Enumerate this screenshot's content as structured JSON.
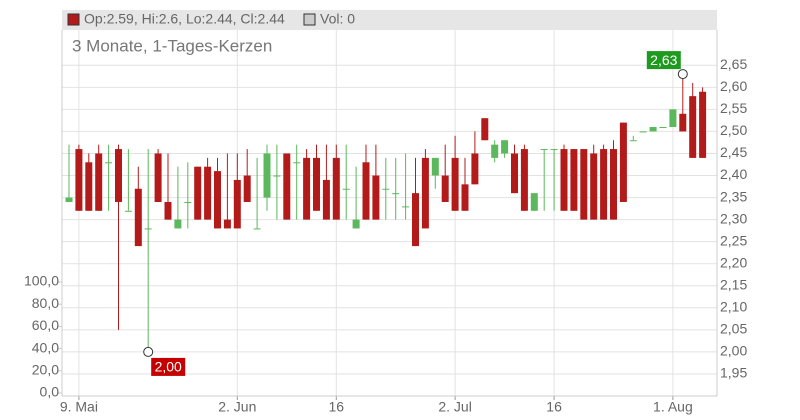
{
  "chart_data": {
    "type": "candlestick",
    "legend_text": "Op:2.59, Hi:2.6, Lo:2.44, Cl:2.44",
    "volume_legend": "Vol: 0",
    "subtitle": "3 Monate, 1-Tages-Kerzen",
    "categories": [
      null,
      "9. Mai",
      null,
      null,
      null,
      null,
      null,
      null,
      null,
      null,
      null,
      null,
      null,
      null,
      null,
      null,
      null,
      "2. Jun",
      null,
      null,
      null,
      null,
      null,
      null,
      null,
      null,
      null,
      "16",
      null,
      null,
      null,
      null,
      null,
      null,
      null,
      null,
      null,
      null,
      null,
      "2. Jul",
      null,
      null,
      null,
      null,
      null,
      null,
      null,
      null,
      null,
      "16",
      null,
      null,
      null,
      null,
      null,
      null,
      null,
      null,
      null,
      null,
      null,
      "1. Aug",
      null,
      null,
      null
    ],
    "series": [
      {
        "name": "Open",
        "values": [
          2.34,
          2.46,
          2.43,
          2.45,
          2.43,
          2.46,
          2.32,
          2.37,
          2.28,
          2.45,
          2.34,
          2.28,
          2.34,
          2.42,
          2.42,
          2.41,
          2.3,
          2.39,
          2.4,
          2.28,
          2.35,
          2.4,
          2.45,
          2.43,
          2.44,
          2.44,
          2.39,
          2.44,
          2.37,
          2.28,
          2.43,
          2.4,
          2.37,
          2.36,
          2.33,
          2.36,
          2.44,
          2.4,
          2.4,
          2.44,
          2.38,
          2.45,
          2.53,
          2.44,
          2.45,
          2.45,
          2.46,
          2.32,
          2.46,
          2.46,
          2.46,
          2.46,
          2.46,
          2.45,
          2.46,
          2.46,
          2.52,
          2.48,
          2.5,
          2.5,
          2.51,
          2.51,
          2.54,
          2.58,
          2.59
        ]
      },
      {
        "name": "High",
        "values": [
          2.47,
          2.47,
          2.45,
          2.47,
          2.47,
          2.47,
          2.46,
          2.42,
          2.46,
          2.46,
          2.45,
          2.42,
          2.43,
          2.42,
          2.44,
          2.44,
          2.45,
          2.45,
          2.46,
          2.44,
          2.47,
          2.47,
          2.45,
          2.47,
          2.46,
          2.47,
          2.47,
          2.47,
          2.47,
          2.42,
          2.47,
          2.47,
          2.44,
          2.44,
          2.45,
          2.44,
          2.46,
          2.44,
          2.47,
          2.49,
          2.44,
          2.5,
          2.53,
          2.48,
          2.48,
          2.47,
          2.47,
          2.36,
          2.46,
          2.46,
          2.47,
          2.46,
          2.46,
          2.47,
          2.47,
          2.48,
          2.52,
          2.49,
          2.5,
          2.51,
          2.51,
          2.55,
          2.63,
          2.61,
          2.6
        ]
      },
      {
        "name": "Low",
        "values": [
          2.34,
          2.32,
          2.32,
          2.32,
          2.32,
          2.05,
          2.32,
          2.24,
          2.0,
          2.34,
          2.3,
          2.28,
          2.28,
          2.3,
          2.3,
          2.28,
          2.28,
          2.28,
          2.34,
          2.28,
          2.32,
          2.3,
          2.3,
          2.3,
          2.3,
          2.32,
          2.3,
          2.3,
          2.3,
          2.28,
          2.3,
          2.3,
          2.3,
          2.3,
          2.3,
          2.24,
          2.28,
          2.37,
          2.34,
          2.32,
          2.32,
          2.38,
          2.48,
          2.43,
          2.44,
          2.36,
          2.32,
          2.32,
          2.32,
          2.32,
          2.32,
          2.32,
          2.3,
          2.3,
          2.3,
          2.3,
          2.34,
          2.48,
          2.5,
          2.5,
          2.51,
          2.51,
          2.5,
          2.44,
          2.44
        ]
      },
      {
        "name": "Close",
        "values": [
          2.35,
          2.32,
          2.32,
          2.32,
          2.43,
          2.34,
          2.32,
          2.24,
          2.28,
          2.34,
          2.3,
          2.3,
          2.34,
          2.3,
          2.3,
          2.28,
          2.28,
          2.28,
          2.34,
          2.28,
          2.45,
          2.4,
          2.3,
          2.43,
          2.3,
          2.32,
          2.3,
          2.3,
          2.37,
          2.3,
          2.3,
          2.3,
          2.37,
          2.36,
          2.33,
          2.24,
          2.28,
          2.44,
          2.34,
          2.32,
          2.32,
          2.38,
          2.48,
          2.47,
          2.48,
          2.36,
          2.32,
          2.36,
          2.46,
          2.46,
          2.32,
          2.32,
          2.3,
          2.3,
          2.3,
          2.3,
          2.34,
          2.48,
          2.5,
          2.51,
          2.51,
          2.55,
          2.5,
          2.44,
          2.44
        ]
      }
    ],
    "up_color": "#5cb85c",
    "down_color": "#b31b1b",
    "annotations": [
      {
        "label": "2,63",
        "value": 2.63,
        "color": "#1e9a1e"
      },
      {
        "label": "2,00",
        "value": 2.0,
        "color": "#c40000"
      }
    ],
    "ylim": [
      1.9,
      2.73
    ],
    "yticks": [
      {
        "value": 1.95,
        "label": "1,95"
      },
      {
        "value": 2.0,
        "label": "2,00"
      },
      {
        "value": 2.05,
        "label": "2,05"
      },
      {
        "value": 2.1,
        "label": "2,10"
      },
      {
        "value": 2.15,
        "label": "2,15"
      },
      {
        "value": 2.2,
        "label": "2,20"
      },
      {
        "value": 2.25,
        "label": "2,25"
      },
      {
        "value": 2.3,
        "label": "2,30"
      },
      {
        "value": 2.35,
        "label": "2,35"
      },
      {
        "value": 2.4,
        "label": "2,40"
      },
      {
        "value": 2.45,
        "label": "2,45"
      },
      {
        "value": 2.5,
        "label": "2,50"
      },
      {
        "value": 2.55,
        "label": "2,55"
      },
      {
        "value": 2.6,
        "label": "2,60"
      },
      {
        "value": 2.65,
        "label": "2,65"
      }
    ],
    "y2lim": [
      0,
      100
    ],
    "y2ticks": [
      {
        "value": 0,
        "label": "0,0"
      },
      {
        "value": 20,
        "label": "20,0"
      },
      {
        "value": 40,
        "label": "40,0"
      },
      {
        "value": 60,
        "label": "60,0"
      },
      {
        "value": 80,
        "label": "80,0"
      },
      {
        "value": 100,
        "label": "100,0"
      }
    ],
    "grid": true
  }
}
